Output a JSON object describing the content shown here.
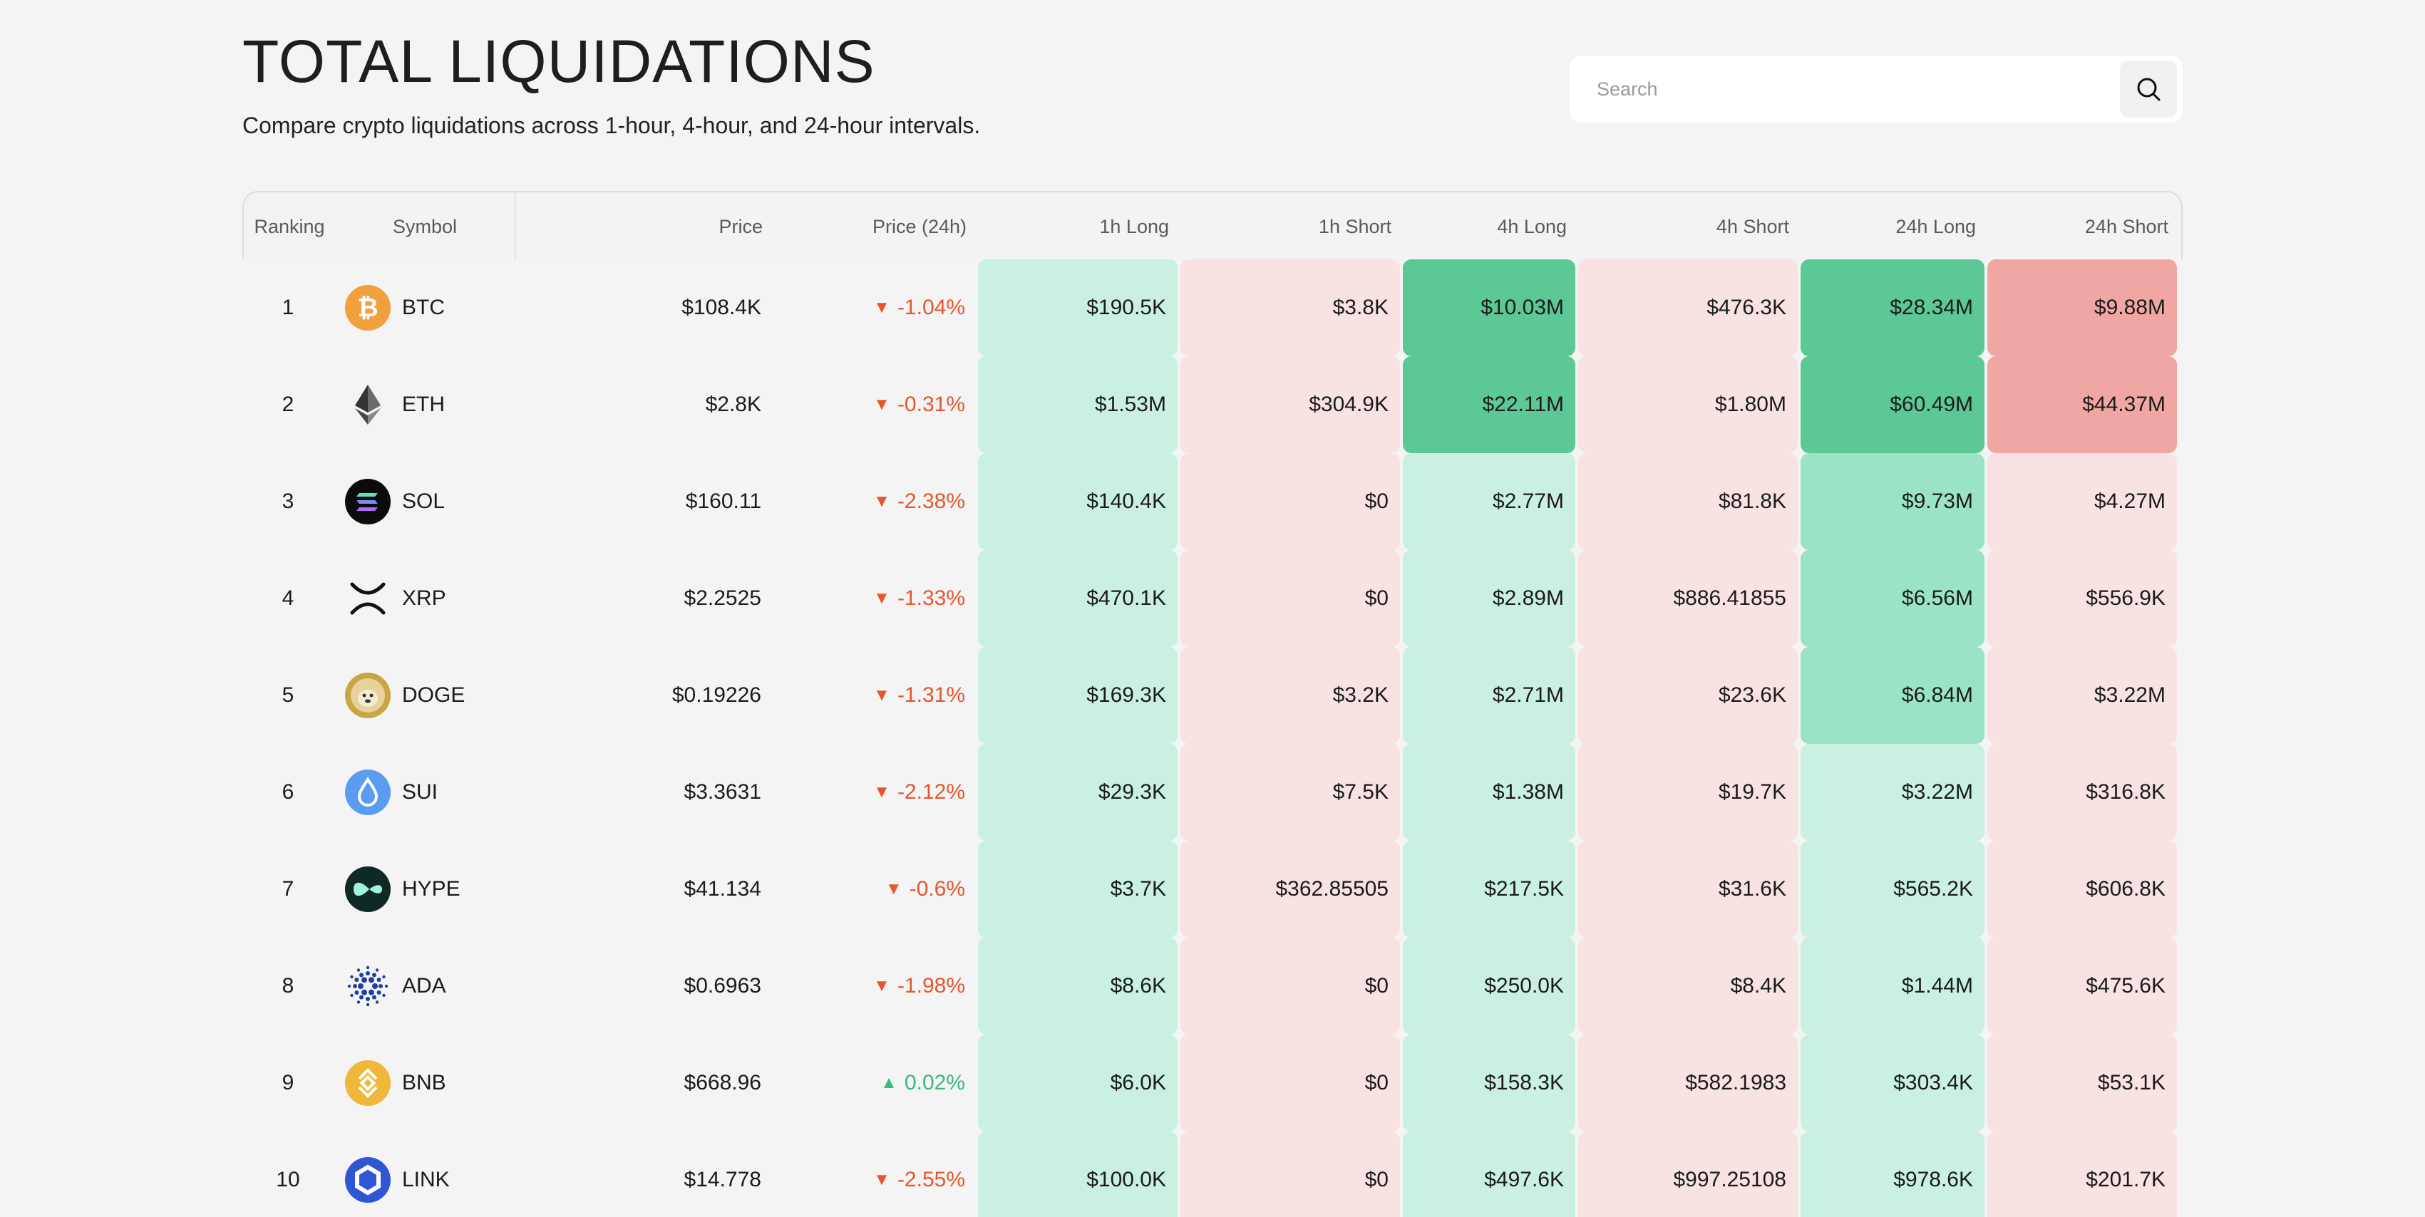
{
  "header": {
    "title": "TOTAL LIQUIDATIONS",
    "subtitle": "Compare crypto liquidations across 1-hour, 4-hour, and 24-hour intervals."
  },
  "search": {
    "placeholder": "Search",
    "icon": "search-icon"
  },
  "columns": [
    "Ranking",
    "Symbol",
    "Price",
    "Price (24h)",
    "1h Long",
    "1h Short",
    "4h Long",
    "4h Short",
    "24h Long",
    "24h Short"
  ],
  "colors": {
    "long_light": "#c9f0e1",
    "long_mid": "#9be3c6",
    "long_strong": "#5cc896",
    "short_light": "#f8e2e2",
    "short_strong": "#f0a7a3",
    "down": "#e4572e",
    "up": "#3ab97a"
  },
  "rows": [
    {
      "rank": "1",
      "symbol": "BTC",
      "icon": "bitcoin-icon",
      "price": "$108.4K",
      "change": "-1.04%",
      "dir": "down",
      "arrow": "▼",
      "l1h": "$190.5K",
      "s1h": "$3.8K",
      "l4h": "$10.03M",
      "s4h": "$476.3K",
      "l24h": "$28.34M",
      "s24h": "$9.88M",
      "l4h_level": "strong",
      "l24h_level": "strong",
      "s24h_level": "strong"
    },
    {
      "rank": "2",
      "symbol": "ETH",
      "icon": "ethereum-icon",
      "price": "$2.8K",
      "change": "-0.31%",
      "dir": "down",
      "arrow": "▼",
      "l1h": "$1.53M",
      "s1h": "$304.9K",
      "l4h": "$22.11M",
      "s4h": "$1.80M",
      "l24h": "$60.49M",
      "s24h": "$44.37M",
      "l4h_level": "strong",
      "l24h_level": "strong",
      "s24h_level": "strong"
    },
    {
      "rank": "3",
      "symbol": "SOL",
      "icon": "solana-icon",
      "price": "$160.11",
      "change": "-2.38%",
      "dir": "down",
      "arrow": "▼",
      "l1h": "$140.4K",
      "s1h": "$0",
      "l4h": "$2.77M",
      "s4h": "$81.8K",
      "l24h": "$9.73M",
      "s24h": "$4.27M",
      "l4h_level": "light",
      "l24h_level": "mid",
      "s24h_level": "light"
    },
    {
      "rank": "4",
      "symbol": "XRP",
      "icon": "xrp-icon",
      "price": "$2.2525",
      "change": "-1.33%",
      "dir": "down",
      "arrow": "▼",
      "l1h": "$470.1K",
      "s1h": "$0",
      "l4h": "$2.89M",
      "s4h": "$886.41855",
      "l24h": "$6.56M",
      "s24h": "$556.9K",
      "l4h_level": "light",
      "l24h_level": "mid",
      "s24h_level": "light"
    },
    {
      "rank": "5",
      "symbol": "DOGE",
      "icon": "dogecoin-icon",
      "price": "$0.19226",
      "change": "-1.31%",
      "dir": "down",
      "arrow": "▼",
      "l1h": "$169.3K",
      "s1h": "$3.2K",
      "l4h": "$2.71M",
      "s4h": "$23.6K",
      "l24h": "$6.84M",
      "s24h": "$3.22M",
      "l4h_level": "light",
      "l24h_level": "mid",
      "s24h_level": "light"
    },
    {
      "rank": "6",
      "symbol": "SUI",
      "icon": "sui-icon",
      "price": "$3.3631",
      "change": "-2.12%",
      "dir": "down",
      "arrow": "▼",
      "l1h": "$29.3K",
      "s1h": "$7.5K",
      "l4h": "$1.38M",
      "s4h": "$19.7K",
      "l24h": "$3.22M",
      "s24h": "$316.8K",
      "l4h_level": "light",
      "l24h_level": "light",
      "s24h_level": "light"
    },
    {
      "rank": "7",
      "symbol": "HYPE",
      "icon": "hyperliquid-icon",
      "price": "$41.134",
      "change": "-0.6%",
      "dir": "down",
      "arrow": "▼",
      "l1h": "$3.7K",
      "s1h": "$362.85505",
      "l4h": "$217.5K",
      "s4h": "$31.6K",
      "l24h": "$565.2K",
      "s24h": "$606.8K",
      "l4h_level": "light",
      "l24h_level": "light",
      "s24h_level": "light"
    },
    {
      "rank": "8",
      "symbol": "ADA",
      "icon": "cardano-icon",
      "price": "$0.6963",
      "change": "-1.98%",
      "dir": "down",
      "arrow": "▼",
      "l1h": "$8.6K",
      "s1h": "$0",
      "l4h": "$250.0K",
      "s4h": "$8.4K",
      "l24h": "$1.44M",
      "s24h": "$475.6K",
      "l4h_level": "light",
      "l24h_level": "light",
      "s24h_level": "light"
    },
    {
      "rank": "9",
      "symbol": "BNB",
      "icon": "bnb-icon",
      "price": "$668.96",
      "change": "0.02%",
      "dir": "up",
      "arrow": "▲",
      "l1h": "$6.0K",
      "s1h": "$0",
      "l4h": "$158.3K",
      "s4h": "$582.1983",
      "l24h": "$303.4K",
      "s24h": "$53.1K",
      "l4h_level": "light",
      "l24h_level": "light",
      "s24h_level": "light"
    },
    {
      "rank": "10",
      "symbol": "LINK",
      "icon": "chainlink-icon",
      "price": "$14.778",
      "change": "-2.55%",
      "dir": "down",
      "arrow": "▼",
      "l1h": "$100.0K",
      "s1h": "$0",
      "l4h": "$497.6K",
      "s4h": "$997.25108",
      "l24h": "$978.6K",
      "s24h": "$201.7K",
      "l4h_level": "light",
      "l24h_level": "light",
      "s24h_level": "light"
    }
  ]
}
